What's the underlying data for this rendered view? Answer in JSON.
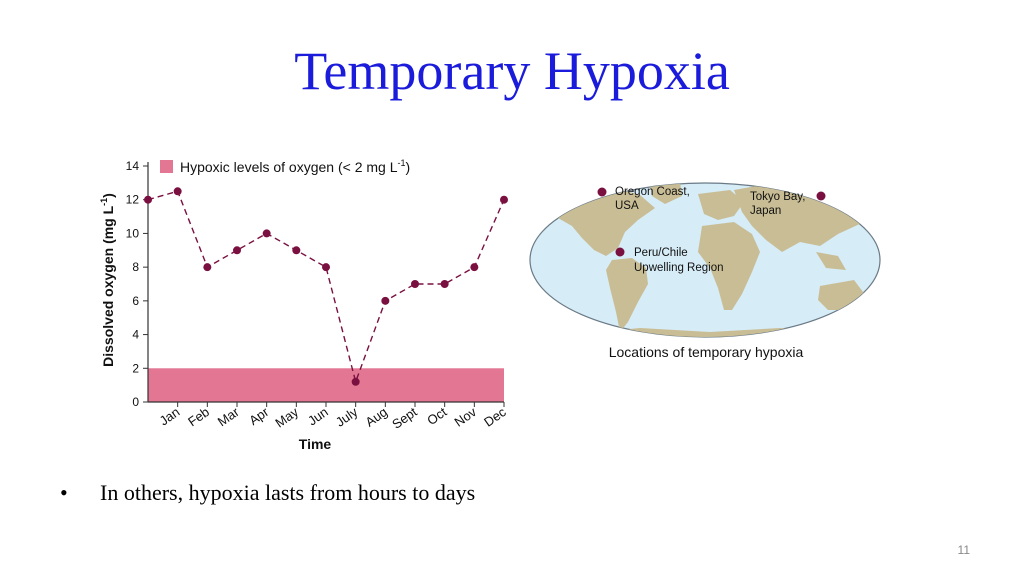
{
  "slide": {
    "title": "Temporary Hypoxia",
    "bullet": "In others, hypoxia lasts from hours to days",
    "page_number": "11"
  },
  "chart_data": {
    "type": "line",
    "categories": [
      "Jan",
      "Feb",
      "Mar",
      "Apr",
      "May",
      "Jun",
      "July",
      "Aug",
      "Sept",
      "Oct",
      "Nov",
      "Dec"
    ],
    "x": [
      0,
      1,
      2,
      3,
      4,
      5,
      6,
      7,
      8,
      9,
      10,
      11,
      12
    ],
    "values": [
      12,
      12.5,
      8,
      9,
      10,
      9,
      8,
      1.2,
      6,
      7,
      7,
      8,
      12
    ],
    "xlabel": "Time",
    "ylabel": "Dissolved oxygen (mg L",
    "ylabel_sup": "-1",
    "ylabel_end": ")",
    "yticks": [
      0,
      2,
      4,
      6,
      8,
      10,
      12,
      14
    ],
    "ylim": [
      0,
      14
    ],
    "grid": false,
    "hypoxic_band": {
      "from": 0,
      "to": 2,
      "color": "#e27693"
    },
    "legend": {
      "position": "top",
      "label": "Hypoxic levels of oxygen (< 2 mg L",
      "label_sup": "-1",
      "label_end": ")"
    },
    "colors": {
      "line": "#7a1040",
      "marker": "#7a1040",
      "axis": "#333333"
    }
  },
  "map": {
    "caption": "Locations of temporary hypoxia",
    "ocean_color": "#d6ecf7",
    "land_color": "#c9bd95",
    "locations": [
      {
        "line1": "Oregon Coast,",
        "line2": "USA"
      },
      {
        "line1": "Tokyo Bay,",
        "line2": "Japan"
      },
      {
        "line1": "Peru/Chile",
        "line2": "Upwelling Region"
      }
    ]
  }
}
